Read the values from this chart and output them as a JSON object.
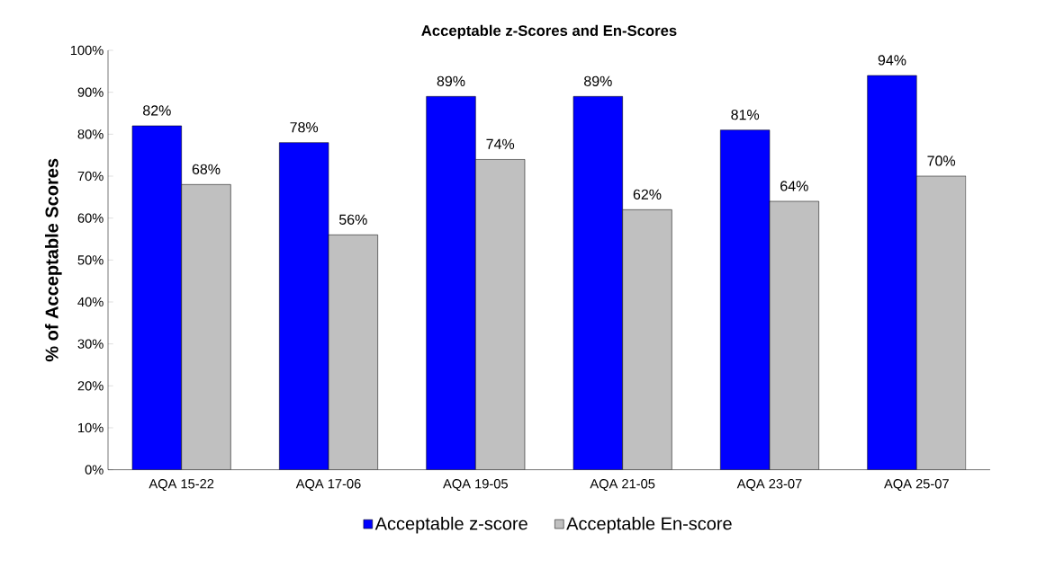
{
  "chart_data": {
    "type": "bar",
    "title": "Acceptable z-Scores and En-Scores",
    "ylabel": "% of Acceptable Scores",
    "categories": [
      "AQA 15-22",
      "AQA 17-06",
      "AQA 19-05",
      "AQA 21-05",
      "AQA 23-07",
      "AQA 25-07"
    ],
    "series": [
      {
        "name": "Acceptable z-score",
        "color": "#0000ff",
        "values": [
          82,
          78,
          89,
          89,
          81,
          94
        ],
        "value_labels": [
          "82%",
          "78%",
          "89%",
          "89%",
          "81%",
          "94%"
        ]
      },
      {
        "name": "Acceptable En-score",
        "color": "#c0c0c0",
        "values": [
          68,
          56,
          74,
          62,
          64,
          70
        ],
        "value_labels": [
          "68%",
          "56%",
          "74%",
          "62%",
          "64%",
          "70%"
        ]
      }
    ],
    "ylim": [
      0,
      100
    ],
    "yticks": [
      {
        "value": 0,
        "label": "0%"
      },
      {
        "value": 10,
        "label": "10%"
      },
      {
        "value": 20,
        "label": "20%"
      },
      {
        "value": 30,
        "label": "30%"
      },
      {
        "value": 40,
        "label": "40%"
      },
      {
        "value": 50,
        "label": "50%"
      },
      {
        "value": 60,
        "label": "60%"
      },
      {
        "value": 70,
        "label": "70%"
      },
      {
        "value": 80,
        "label": "80%"
      },
      {
        "value": 90,
        "label": "90%"
      },
      {
        "value": 100,
        "label": "100%"
      }
    ],
    "legend": "bottom",
    "grid": false
  }
}
